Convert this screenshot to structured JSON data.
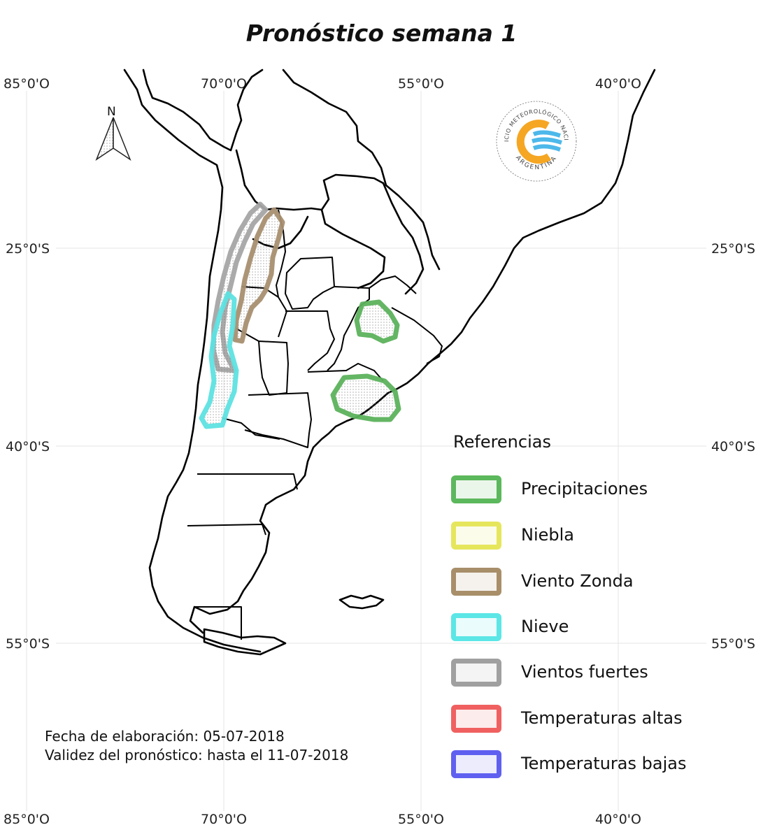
{
  "title": "Pronóstico semana 1",
  "coordinates": {
    "top": [
      "85°0'O",
      "70°0'O",
      "55°0'O",
      "40°0'O"
    ],
    "bottom": [
      "85°0'O",
      "70°0'O",
      "55°0'O",
      "40°0'O"
    ],
    "left": [
      "25°0'S",
      "40°0'S",
      "55°0'S"
    ],
    "right": [
      "25°0'S",
      "40°0'S",
      "55°0'S"
    ]
  },
  "north_arrow": {
    "label": "N"
  },
  "logo": {
    "ring_text": "SERVICIO METEOROLÓGICO NACIONAL",
    "country_text": "ARGENTINA"
  },
  "legend": {
    "title": "Referencias",
    "items": [
      {
        "label": "Precipitaciones",
        "color": "#5cb85c"
      },
      {
        "label": "Niebla",
        "color": "#e6e65c"
      },
      {
        "label": "Viento Zonda",
        "color": "#a88f6a"
      },
      {
        "label": "Nieve",
        "color": "#5ce6e6"
      },
      {
        "label": "Vientos fuertes",
        "color": "#a0a0a0"
      },
      {
        "label": "Temperaturas altas",
        "color": "#f06060"
      },
      {
        "label": "Temperaturas bajas",
        "color": "#6060f0"
      }
    ]
  },
  "footer": {
    "elaboration": "Fecha de elaboración: 05-07-2018",
    "validity": "Validez del pronóstico: hasta el 11-07-2018"
  },
  "forecast_zones": [
    {
      "category": "Vientos fuertes",
      "region": "Cordillera de los Andes central"
    },
    {
      "category": "Viento Zonda",
      "region": "Cuyo / Noroeste"
    },
    {
      "category": "Nieve",
      "region": "Cordillera patagónica norte y Cuyo"
    },
    {
      "category": "Precipitaciones",
      "region": "Mesopotamia"
    },
    {
      "category": "Precipitaciones",
      "region": "Buenos Aires norte"
    }
  ]
}
